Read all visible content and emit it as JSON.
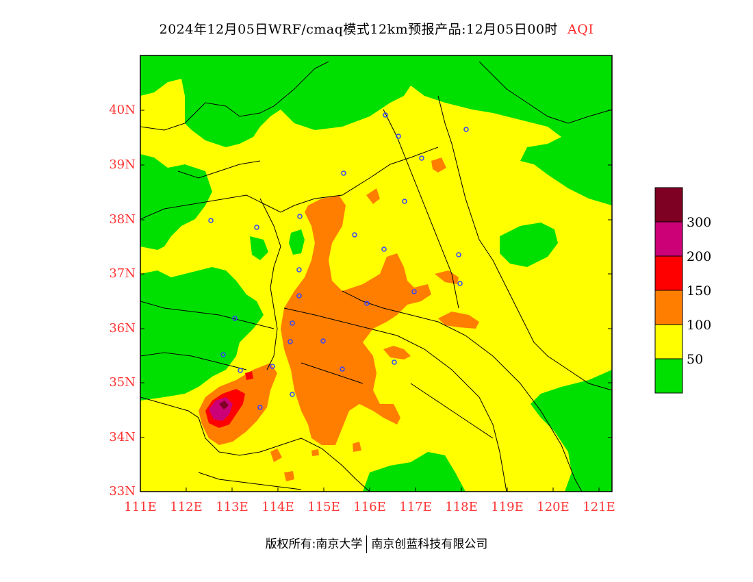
{
  "title": {
    "main": "2024年12月05日WRF/cmaq模式12km预报产品:12月05日00时",
    "variable": "AQI"
  },
  "axes": {
    "y_ticks": [
      "40N",
      "39N",
      "38N",
      "37N",
      "36N",
      "35N",
      "34N",
      "33N"
    ],
    "x_ticks": [
      "111E",
      "112E",
      "113E",
      "114E",
      "115E",
      "116E",
      "117E",
      "118E",
      "119E",
      "120E",
      "121E"
    ],
    "lat_range": [
      33,
      41
    ],
    "lon_range": [
      111,
      121.3
    ]
  },
  "legend": {
    "levels": [
      {
        "label": "",
        "color": "#00e000"
      },
      {
        "label": "50",
        "color": "#ffff00"
      },
      {
        "label": "100",
        "color": "#ff7e00"
      },
      {
        "label": "150",
        "color": "#ff0000"
      },
      {
        "label": "200",
        "color": "#cc0077"
      },
      {
        "label": "300",
        "color": "#7e0023"
      }
    ]
  },
  "colors": {
    "good": "#00e000",
    "moderate": "#ffff00",
    "unhealthy_sensitive": "#ff7e00",
    "unhealthy": "#ff0000",
    "very_unhealthy": "#cc0077",
    "hazardous": "#7e0023",
    "tick_text": "#ff3333",
    "city_marker": "#3344ff"
  },
  "footer": {
    "copyright": "版权所有:南京大学",
    "company": "南京创蓝科技有限公司"
  }
}
